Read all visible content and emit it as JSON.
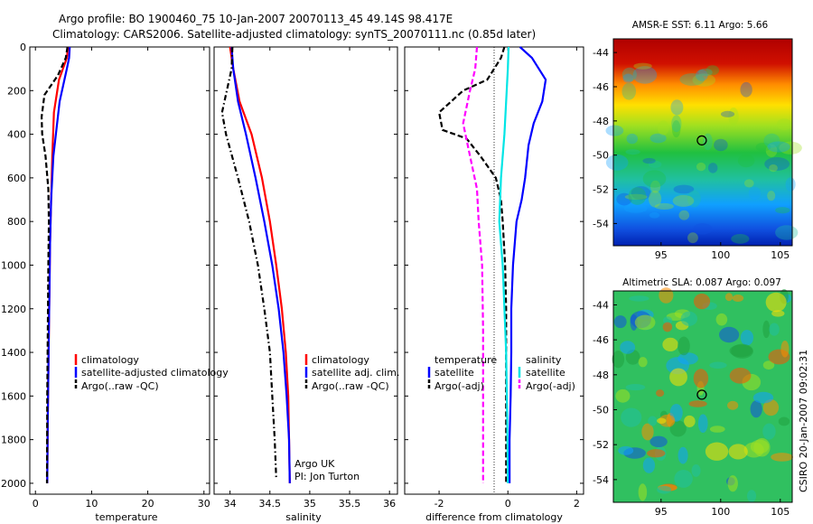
{
  "header": {
    "line1": "Argo profile: BO 1900460_75 10-Jan-2007 20070113_45 49.14S 98.417E",
    "line2": "Climatology: CARS2006. Satellite-adjusted climatology: synTS_20070111.nc (0.85d later)"
  },
  "watermark": "CSIRO 20-Jan-2007 09:02:31",
  "colors": {
    "climatology": "#ff0000",
    "satellite": "#0000ff",
    "argo": "#000000",
    "salinity_satellite": "#00e5e5",
    "salinity_argo": "#ff00ff"
  },
  "chart_data": [
    {
      "type": "line",
      "xlabel": "temperature",
      "ylabel": "",
      "xlim": [
        -1,
        31
      ],
      "ylim": [
        0,
        2050
      ],
      "y_reversed": true,
      "xticks": [
        "0",
        "10",
        "20",
        "30"
      ],
      "yticks": [
        "0",
        "200",
        "400",
        "600",
        "800",
        "1000",
        "1200",
        "1400",
        "1600",
        "1800",
        "2000"
      ],
      "legend": [
        "climatology",
        "satellite-adjusted climatology",
        "Argo(..raw -QC)"
      ],
      "series": [
        {
          "name": "climatology",
          "style": "solid",
          "color": "#ff0000",
          "x": [
            5.8,
            5.6,
            4.2,
            3.3,
            3.0,
            2.8,
            2.6,
            2.5,
            2.4,
            2.3,
            2.2,
            2.1
          ],
          "y": [
            0,
            50,
            150,
            300,
            500,
            700,
            900,
            1100,
            1300,
            1500,
            1700,
            2000
          ]
        },
        {
          "name": "satellite-adjusted climatology",
          "style": "solid",
          "color": "#0000ff",
          "x": [
            6.1,
            6.0,
            5.6,
            4.3,
            3.2,
            2.8,
            2.6,
            2.5,
            2.4,
            2.3,
            2.2,
            2.1
          ],
          "y": [
            0,
            50,
            100,
            250,
            500,
            700,
            900,
            1100,
            1300,
            1500,
            1700,
            2000
          ]
        },
        {
          "name": "Argo(..raw -QC)",
          "style": "dash",
          "color": "#000000",
          "x": [
            5.7,
            5.4,
            4.0,
            1.6,
            1.1,
            1.2,
            1.8,
            2.3,
            2.4,
            2.3,
            2.2,
            2.1,
            2.05
          ],
          "y": [
            0,
            50,
            130,
            220,
            320,
            400,
            500,
            650,
            800,
            1000,
            1300,
            1600,
            2000
          ]
        }
      ]
    },
    {
      "type": "line",
      "xlabel": "salinity",
      "ylabel": "",
      "xlim": [
        33.8,
        36.1
      ],
      "ylim": [
        0,
        2050
      ],
      "y_reversed": true,
      "xticks": [
        "34",
        "34.5",
        "35",
        "35.5",
        "36"
      ],
      "legend": [
        "climatology",
        "satellite adj. clim.",
        "Argo(..raw -QC)"
      ],
      "annotations": [
        "Argo UK",
        "PI: Jon Turton"
      ],
      "series": [
        {
          "name": "climatology",
          "style": "solid",
          "color": "#ff0000",
          "x": [
            34.0,
            34.04,
            34.12,
            34.27,
            34.4,
            34.5,
            34.58,
            34.65,
            34.7,
            34.73,
            34.74,
            34.75
          ],
          "y": [
            0,
            100,
            250,
            400,
            600,
            800,
            1000,
            1200,
            1400,
            1600,
            1800,
            2000
          ]
        },
        {
          "name": "satellite adj. clim.",
          "style": "solid",
          "color": "#0000ff",
          "x": [
            34.02,
            34.04,
            34.1,
            34.2,
            34.32,
            34.43,
            34.53,
            34.61,
            34.67,
            34.71,
            34.74,
            34.75
          ],
          "y": [
            0,
            100,
            250,
            400,
            600,
            800,
            1000,
            1200,
            1400,
            1600,
            1800,
            2000
          ]
        },
        {
          "name": "Argo(..raw -QC)",
          "style": "dashdot",
          "color": "#000000",
          "x": [
            34.03,
            34.02,
            33.9,
            33.95,
            34.1,
            34.24,
            34.35,
            34.43,
            34.5,
            34.53,
            34.56,
            34.58
          ],
          "y": [
            0,
            100,
            300,
            400,
            600,
            800,
            1000,
            1200,
            1400,
            1600,
            1800,
            1980
          ]
        }
      ]
    },
    {
      "type": "line",
      "xlabel": "difference from climatology",
      "ylabel": "",
      "xlim": [
        -3,
        2.2
      ],
      "ylim": [
        0,
        2050
      ],
      "y_reversed": true,
      "xticks": [
        "-2",
        "0",
        "2"
      ],
      "legend_groups": [
        {
          "title": "temperature",
          "entries": [
            "satellite",
            "Argo(-adj)"
          ]
        },
        {
          "title": "salinity",
          "entries": [
            "satellite",
            "Argo(-adj)"
          ]
        }
      ],
      "series": [
        {
          "name": "temperature satellite",
          "style": "solid",
          "color": "#0000ff",
          "x": [
            0.35,
            0.7,
            1.1,
            1.0,
            0.75,
            0.6,
            0.5,
            0.4,
            0.25,
            0.15,
            0.1,
            0.1,
            0.08,
            0.05,
            0.05
          ],
          "y": [
            0,
            50,
            150,
            250,
            350,
            450,
            600,
            700,
            800,
            1000,
            1200,
            1400,
            1600,
            1800,
            2000
          ]
        },
        {
          "name": "temperature Argo(-adj)",
          "style": "dash",
          "color": "#000000",
          "x": [
            -0.1,
            -0.2,
            -0.6,
            -1.3,
            -2.0,
            -1.9,
            -1.2,
            -0.8,
            -0.35,
            -0.2,
            -0.15,
            -0.08,
            -0.05,
            -0.05,
            -0.05,
            -0.05
          ],
          "y": [
            0,
            50,
            150,
            200,
            300,
            380,
            420,
            500,
            600,
            700,
            800,
            1000,
            1200,
            1400,
            1700,
            2000
          ]
        },
        {
          "name": "salinity satellite",
          "style": "solid",
          "color": "#00e5e5",
          "x": [
            0.02,
            0.0,
            -0.05,
            -0.1,
            -0.2,
            -0.25,
            -0.15,
            -0.1,
            -0.05,
            -0.02,
            0.0
          ],
          "y": [
            0,
            100,
            250,
            400,
            600,
            800,
            1000,
            1200,
            1400,
            1700,
            2000
          ]
        },
        {
          "name": "salinity Argo(-adj)",
          "style": "dash",
          "color": "#ff00ff",
          "x": [
            -0.9,
            -0.95,
            -1.1,
            -1.3,
            -1.1,
            -0.9,
            -0.85,
            -0.75,
            -0.72,
            -0.72,
            -0.72
          ],
          "y": [
            0,
            100,
            200,
            350,
            500,
            650,
            800,
            1000,
            1300,
            1700,
            2000
          ]
        }
      ]
    },
    {
      "type": "heatmap",
      "title": "AMSR-E SST: 6.11 Argo: 5.66",
      "xticks": [
        "95",
        "100",
        "105"
      ],
      "yticks": [
        "-44",
        "-46",
        "-48",
        "-50",
        "-52",
        "-54"
      ],
      "xlim": [
        91,
        106
      ],
      "ylim": [
        -55.3,
        -43.2
      ],
      "marker": {
        "lon": 98.417,
        "lat": -49.14
      }
    },
    {
      "type": "heatmap",
      "title": "Altimetric SLA: 0.087 Argo: 0.097",
      "xticks": [
        "95",
        "100",
        "105"
      ],
      "yticks": [
        "-44",
        "-46",
        "-48",
        "-50",
        "-52",
        "-54"
      ],
      "xlim": [
        91,
        106
      ],
      "ylim": [
        -55.3,
        -43.2
      ],
      "marker": {
        "lon": 98.417,
        "lat": -49.14
      }
    }
  ]
}
